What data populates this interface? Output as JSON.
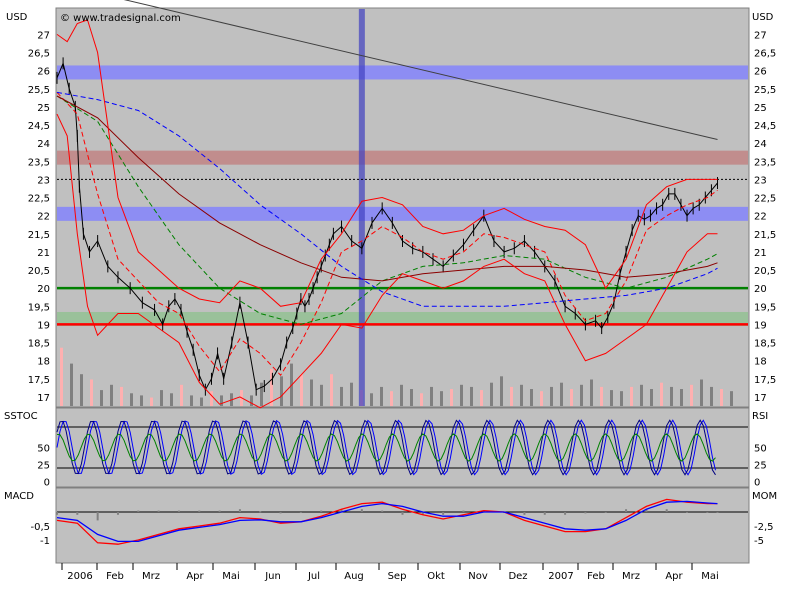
{
  "chart_data": {
    "type": "line",
    "title": "",
    "currency": "USD",
    "watermark": "© www.tradesignal.com",
    "x_labels": [
      "2006",
      "Feb",
      "Mrz",
      "Apr",
      "Mai",
      "Jun",
      "Jul",
      "Aug",
      "Sep",
      "Okt",
      "Nov",
      "Dez",
      "2007",
      "Feb",
      "Mrz",
      "Apr",
      "Mai"
    ],
    "grid": "none",
    "background_color": "#c0c0c0",
    "panels": [
      {
        "id": "price",
        "ylabel_left": "USD",
        "ylabel_right": "USD",
        "ylim": [
          16.75,
          27.7
        ],
        "ticks": [
          27,
          26.5,
          26,
          25.5,
          25,
          24.5,
          24,
          23.5,
          23,
          22.5,
          22,
          21.5,
          21,
          20.5,
          20,
          19.5,
          19,
          18.5,
          18,
          17.5,
          17
        ],
        "tick_labels": [
          "27",
          "26,5",
          "26",
          "25,5",
          "25",
          "24,5",
          "24",
          "23,5",
          "23",
          "22,5",
          "22",
          "21,5",
          "21",
          "20,5",
          "20",
          "19,5",
          "19",
          "18,5",
          "18",
          "17,5",
          "17"
        ],
        "series": [
          {
            "role": "close",
            "color": "#000000",
            "x": [
              0,
              3,
              6,
              9,
              10,
              11,
              13,
              16,
              20,
              25,
              30,
              36,
              42,
              48,
              52,
              55,
              58,
              61,
              64,
              67,
              70,
              73,
              76,
              79,
              82,
              86,
              90,
              94,
              98,
              102,
              106,
              110,
              113,
              116,
              118,
              120,
              122,
              124,
              126,
              128,
              130,
              132,
              134,
              136,
              140,
              145,
              150,
              155,
              160,
              165,
              170,
              175,
              180,
              185,
              190,
              195,
              200,
              205,
              210,
              215,
              220,
              225,
              230,
              235,
              240,
              245,
              250,
              255,
              260,
              265,
              268,
              271,
              274,
              277,
              280,
              283,
              286,
              289,
              292,
              295,
              298,
              301,
              304,
              307,
              310,
              313,
              316,
              319,
              322,
              325
            ],
            "y": [
              25.8,
              26.2,
              25.5,
              25.0,
              24.2,
              22.8,
              21.5,
              21.0,
              21.3,
              20.6,
              20.3,
              20.0,
              19.6,
              19.4,
              19.0,
              19.5,
              19.7,
              19.4,
              18.8,
              18.3,
              17.6,
              17.2,
              17.5,
              18.2,
              17.5,
              18.5,
              19.6,
              18.5,
              17.2,
              17.3,
              17.5,
              17.9,
              18.5,
              18.9,
              19.3,
              19.7,
              19.5,
              19.7,
              20.0,
              20.3,
              20.6,
              20.9,
              21.2,
              21.5,
              21.7,
              21.3,
              21.1,
              21.8,
              22.2,
              21.8,
              21.3,
              21.1,
              21.0,
              20.8,
              20.6,
              20.9,
              21.2,
              21.6,
              22.0,
              21.3,
              21.0,
              21.1,
              21.3,
              21.0,
              20.6,
              20.2,
              19.5,
              19.3,
              19.0,
              19.1,
              18.9,
              19.2,
              19.6,
              20.4,
              21.0,
              21.6,
              22.0,
              21.9,
              22.0,
              22.2,
              22.3,
              22.6,
              22.6,
              22.3,
              22.0,
              22.2,
              22.3,
              22.5,
              22.7,
              22.9
            ]
          },
          {
            "role": "ma_fast",
            "color": "#ff0000",
            "style": "dashed",
            "x": [
              0,
              10,
              20,
              30,
              40,
              50,
              60,
              70,
              80,
              90,
              100,
              110,
              120,
              130,
              140,
              150,
              160,
              170,
              180,
              190,
              200,
              210,
              220,
              230,
              240,
              250,
              260,
              270,
              280,
              290,
              300,
              310,
              320,
              325
            ],
            "y": [
              25.4,
              24.8,
              22.6,
              20.8,
              20.2,
              19.6,
              19.3,
              18.4,
              17.7,
              18.6,
              18.2,
              17.6,
              18.5,
              19.6,
              21.0,
              21.3,
              21.7,
              21.4,
              21.0,
              20.8,
              21.0,
              21.5,
              21.4,
              21.2,
              21.0,
              19.8,
              19.1,
              19.3,
              20.2,
              21.6,
              22.0,
              22.3,
              22.5,
              22.7
            ]
          },
          {
            "role": "ma_mid",
            "color": "#008000",
            "style": "dashed",
            "x": [
              0,
              20,
              40,
              60,
              80,
              100,
              120,
              140,
              160,
              180,
              200,
              220,
              240,
              260,
              280,
              300,
              320,
              325
            ],
            "y": [
              25.3,
              24.6,
              22.8,
              21.2,
              20.0,
              19.3,
              19.0,
              19.3,
              20.2,
              20.6,
              20.7,
              20.9,
              20.8,
              20.3,
              20.0,
              20.3,
              20.8,
              20.95
            ]
          },
          {
            "role": "ma_slow",
            "color": "#8b0000",
            "style": "solid",
            "x": [
              0,
              20,
              40,
              60,
              80,
              100,
              120,
              140,
              160,
              180,
              200,
              220,
              240,
              260,
              280,
              300,
              320,
              325
            ],
            "y": [
              25.3,
              24.7,
              23.6,
              22.6,
              21.8,
              21.2,
              20.7,
              20.3,
              20.2,
              20.4,
              20.5,
              20.6,
              20.6,
              20.5,
              20.3,
              20.4,
              20.6,
              20.7
            ]
          },
          {
            "role": "ma_long",
            "color": "#0000ff",
            "style": "dashed",
            "x": [
              0,
              20,
              40,
              60,
              80,
              100,
              120,
              140,
              160,
              180,
              200,
              220,
              240,
              260,
              280,
              300,
              320,
              325
            ],
            "y": [
              25.4,
              25.2,
              24.9,
              24.2,
              23.3,
              22.3,
              21.5,
              20.6,
              19.9,
              19.5,
              19.5,
              19.5,
              19.6,
              19.7,
              19.8,
              20.0,
              20.4,
              20.55
            ]
          },
          {
            "role": "bollinger_upper",
            "color": "#ff0000",
            "style": "solid",
            "x": [
              0,
              5,
              10,
              15,
              20,
              25,
              30,
              40,
              50,
              60,
              70,
              80,
              90,
              100,
              110,
              120,
              130,
              140,
              150,
              160,
              170,
              180,
              190,
              200,
              210,
              220,
              230,
              240,
              250,
              260,
              270,
              280,
              290,
              300,
              310,
              320,
              325
            ],
            "y": [
              27.0,
              26.8,
              27.3,
              27.4,
              26.5,
              24.5,
              22.5,
              21.0,
              20.5,
              20.0,
              19.7,
              19.6,
              20.2,
              20.0,
              19.5,
              19.6,
              20.8,
              21.5,
              22.4,
              22.5,
              22.3,
              21.7,
              21.5,
              21.6,
              22.0,
              22.2,
              21.9,
              21.7,
              21.6,
              21.2,
              20.0,
              20.8,
              22.3,
              22.8,
              23.0,
              23.0,
              23.0
            ]
          },
          {
            "role": "bollinger_lower",
            "color": "#ff0000",
            "style": "solid",
            "x": [
              0,
              5,
              10,
              15,
              20,
              25,
              30,
              40,
              50,
              60,
              70,
              80,
              90,
              100,
              110,
              120,
              130,
              140,
              150,
              160,
              170,
              180,
              190,
              200,
              210,
              220,
              230,
              240,
              250,
              260,
              270,
              280,
              290,
              300,
              310,
              320,
              325
            ],
            "y": [
              24.8,
              24.2,
              21.5,
              19.5,
              18.7,
              19.0,
              19.3,
              19.3,
              18.9,
              18.5,
              17.4,
              16.8,
              17.0,
              16.7,
              17.0,
              17.6,
              18.2,
              19.0,
              18.9,
              19.8,
              20.4,
              20.2,
              20.0,
              20.2,
              20.6,
              20.8,
              20.4,
              20.2,
              19.0,
              18.0,
              18.2,
              18.6,
              19.0,
              20.0,
              21.0,
              21.5,
              21.5
            ]
          }
        ],
        "volume": {
          "ylim": [
            0,
            1.0
          ],
          "color": "#808080",
          "up_color": "#ffb0b0",
          "values": [
            0.55,
            0.4,
            0.3,
            0.25,
            0.15,
            0.2,
            0.18,
            0.12,
            0.1,
            0.08,
            0.15,
            0.12,
            0.2,
            0.1,
            0.08,
            0.14,
            0.1,
            0.12,
            0.15,
            0.1,
            0.22,
            0.35,
            0.28,
            0.4,
            0.3,
            0.25,
            0.2,
            0.3,
            0.18,
            0.22,
            0.15,
            0.12,
            0.18,
            0.14,
            0.2,
            0.16,
            0.12,
            0.18,
            0.14,
            0.16,
            0.2,
            0.18,
            0.15,
            0.22,
            0.28,
            0.18,
            0.2,
            0.16,
            0.14,
            0.18,
            0.22,
            0.16,
            0.2,
            0.25,
            0.18,
            0.15,
            0.14,
            0.18,
            0.2,
            0.16,
            0.22,
            0.18,
            0.16,
            0.2,
            0.25,
            0.18,
            0.16,
            0.14
          ]
        }
      },
      {
        "id": "stoch_rsi",
        "ylabel_left": "SSTOC",
        "ylabel_right": "RSI",
        "ylim": [
          -5,
          105
        ],
        "ticks": [
          50,
          25,
          0
        ],
        "tick_labels": [
          "50",
          "25",
          "0"
        ],
        "reference_lines": [
          80,
          20
        ]
      },
      {
        "id": "macd_mom",
        "ylabel_left": "MACD",
        "ylabel_right": "MOM",
        "left_ticks": [
          "-0,5",
          "-1"
        ],
        "right_ticks": [
          "-2,5",
          "-5"
        ],
        "series": [
          {
            "role": "macd",
            "color": "#ff0000",
            "x": [
              0,
              10,
              20,
              30,
              40,
              50,
              60,
              70,
              80,
              90,
              100,
              110,
              120,
              130,
              140,
              150,
              160,
              170,
              180,
              190,
              200,
              210,
              220,
              230,
              240,
              250,
              260,
              270,
              280,
              290,
              300,
              310,
              320,
              325
            ],
            "y": [
              -0.3,
              -0.4,
              -1.1,
              -1.15,
              -1.0,
              -0.8,
              -0.6,
              -0.5,
              -0.4,
              -0.2,
              -0.25,
              -0.4,
              -0.35,
              -0.15,
              0.1,
              0.3,
              0.35,
              0.1,
              -0.1,
              -0.25,
              -0.1,
              0.05,
              0.0,
              -0.3,
              -0.5,
              -0.7,
              -0.7,
              -0.6,
              -0.2,
              0.2,
              0.45,
              0.35,
              0.3,
              0.3
            ]
          },
          {
            "role": "signal",
            "color": "#0000ff",
            "x": [
              0,
              10,
              20,
              30,
              40,
              50,
              60,
              70,
              80,
              90,
              100,
              110,
              120,
              130,
              140,
              150,
              160,
              170,
              180,
              190,
              200,
              210,
              220,
              230,
              240,
              250,
              260,
              270,
              280,
              290,
              300,
              310,
              320,
              325
            ],
            "y": [
              -0.2,
              -0.3,
              -0.8,
              -1.05,
              -1.05,
              -0.85,
              -0.65,
              -0.55,
              -0.45,
              -0.3,
              -0.28,
              -0.35,
              -0.35,
              -0.2,
              0.0,
              0.2,
              0.3,
              0.2,
              0.0,
              -0.15,
              -0.15,
              0.0,
              0.0,
              -0.2,
              -0.4,
              -0.6,
              -0.65,
              -0.6,
              -0.3,
              0.1,
              0.35,
              0.38,
              0.32,
              0.3
            ]
          }
        ]
      }
    ],
    "horizontal_bands": [
      {
        "panel": "price",
        "y": 25.95,
        "color": "#7f7fff"
      },
      {
        "panel": "price",
        "y": 22.05,
        "color": "#7f7fff"
      },
      {
        "panel": "price",
        "y": 23.6,
        "color": "#c08080"
      },
      {
        "panel": "price",
        "y": 19.15,
        "color": "#90c090"
      }
    ],
    "horizontal_lines": [
      {
        "panel": "price",
        "y": 23.0,
        "color": "#000000",
        "style": "dotted"
      },
      {
        "panel": "price",
        "y": 20.0,
        "color": "#008000"
      },
      {
        "panel": "price",
        "y": 19.0,
        "color": "#ff0000"
      }
    ],
    "vertical_lines": [
      {
        "x": 150,
        "color": "#4040c0"
      }
    ],
    "trendlines": [
      {
        "from": [
          30,
          28.0
        ],
        "to": [
          325,
          24.1
        ],
        "color": "#404040"
      }
    ]
  }
}
